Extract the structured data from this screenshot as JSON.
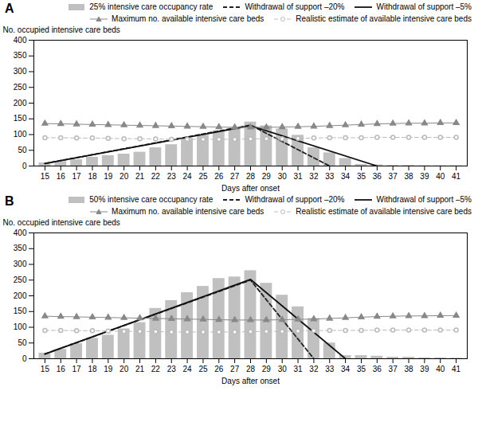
{
  "chart_data": [
    {
      "type": "bar",
      "title": "A",
      "x": [
        15,
        16,
        17,
        18,
        19,
        20,
        21,
        22,
        23,
        24,
        25,
        26,
        27,
        28,
        29,
        30,
        31,
        32,
        33,
        34,
        35,
        36,
        37,
        38,
        39,
        40,
        41
      ],
      "xlim": [
        14.3,
        41.7
      ],
      "xticks": [
        15,
        16,
        17,
        18,
        19,
        20,
        21,
        22,
        23,
        24,
        25,
        26,
        27,
        28,
        29,
        30,
        31,
        32,
        33,
        34,
        35,
        36,
        37,
        38,
        39,
        40,
        41
      ],
      "ylim": [
        0,
        400
      ],
      "yticks": [
        0,
        50,
        100,
        150,
        200,
        250,
        300,
        350,
        400
      ],
      "xlabel": "Days after onset",
      "ylabel": "No. occupied intensive care beds",
      "legend": "upper right",
      "grid": false,
      "series": [
        {
          "name": "25% intensive care occupancy rate",
          "type": "bar",
          "color": "#c0c0c0",
          "values": [
            10,
            14,
            20,
            28,
            33,
            38,
            44,
            58,
            68,
            88,
            98,
            112,
            122,
            140,
            128,
            118,
            98,
            58,
            42,
            24,
            5,
            4,
            2,
            2,
            1,
            1,
            1
          ]
        },
        {
          "name": "Withdrawal of support –20%",
          "type": "line",
          "color": "#222222",
          "line_style": "dashed",
          "x": [
            15,
            28,
            33
          ],
          "values": [
            8,
            130,
            0
          ]
        },
        {
          "name": "Withdrawal of support –5%",
          "type": "line",
          "color": "#111111",
          "line_style": "solid",
          "x": [
            15,
            28,
            36
          ],
          "values": [
            8,
            128,
            0
          ]
        },
        {
          "name": "Maximum no. available intensive care beds",
          "type": "line",
          "color": "#888888",
          "line_style": "solid",
          "marker": "triangle",
          "values": [
            135,
            134,
            133,
            132,
            131,
            130,
            129,
            128,
            127,
            126,
            125,
            124,
            123,
            123,
            123,
            124,
            125,
            126,
            128,
            130,
            132,
            134,
            135,
            136,
            136,
            137,
            137
          ]
        },
        {
          "name": "Realistic estimate of available intensive care beds",
          "type": "line",
          "color": "#bbbbbb",
          "line_style": "dashed",
          "marker": "circle",
          "values": [
            90,
            90,
            89,
            89,
            88,
            87,
            87,
            86,
            85,
            85,
            85,
            85,
            85,
            86,
            87,
            87,
            88,
            89,
            90,
            90,
            90,
            91,
            91,
            91,
            91,
            91,
            91
          ]
        }
      ]
    },
    {
      "type": "bar",
      "title": "B",
      "x": [
        15,
        16,
        17,
        18,
        19,
        20,
        21,
        22,
        23,
        24,
        25,
        26,
        27,
        28,
        29,
        30,
        31,
        32,
        33,
        34,
        35,
        36,
        37,
        38,
        39,
        40,
        41
      ],
      "xlim": [
        14.3,
        41.7
      ],
      "xticks": [
        15,
        16,
        17,
        18,
        19,
        20,
        21,
        22,
        23,
        24,
        25,
        26,
        27,
        28,
        29,
        30,
        31,
        32,
        33,
        34,
        35,
        36,
        37,
        38,
        39,
        40,
        41
      ],
      "ylim": [
        0,
        400
      ],
      "yticks": [
        0,
        50,
        100,
        150,
        200,
        250,
        300,
        350,
        400
      ],
      "xlabel": "Days after onset",
      "ylabel": "No. occupied intensive care beds",
      "legend": "upper right",
      "grid": false,
      "series": [
        {
          "name": "50% intensive care occupancy rate",
          "type": "bar",
          "color": "#c0c0c0",
          "values": [
            18,
            30,
            48,
            65,
            75,
            95,
            115,
            160,
            185,
            210,
            230,
            255,
            260,
            280,
            240,
            202,
            165,
            128,
            50,
            10,
            10,
            8,
            5,
            5,
            3,
            3,
            2
          ]
        },
        {
          "name": "Withdrawal of support –20%",
          "type": "line",
          "color": "#222222",
          "line_style": "dashed",
          "x": [
            15,
            28,
            32
          ],
          "values": [
            15,
            250,
            0
          ]
        },
        {
          "name": "Withdrawal of support –5%",
          "type": "line",
          "color": "#111111",
          "line_style": "solid",
          "x": [
            15,
            28,
            34
          ],
          "values": [
            15,
            252,
            0
          ]
        },
        {
          "name": "Maximum no. available intensive care beds",
          "type": "line",
          "color": "#888888",
          "line_style": "solid",
          "marker": "triangle",
          "values": [
            135,
            134,
            133,
            132,
            131,
            130,
            129,
            128,
            127,
            126,
            125,
            124,
            123,
            123,
            123,
            124,
            125,
            126,
            128,
            130,
            132,
            134,
            135,
            136,
            136,
            137,
            137
          ]
        },
        {
          "name": "Realistic estimate of available intensive care beds",
          "type": "line",
          "color": "#bbbbbb",
          "line_style": "dashed",
          "marker": "circle",
          "values": [
            90,
            90,
            89,
            89,
            88,
            87,
            87,
            86,
            85,
            85,
            85,
            85,
            85,
            86,
            87,
            87,
            88,
            89,
            90,
            90,
            90,
            91,
            91,
            91,
            91,
            91,
            91
          ]
        }
      ]
    }
  ]
}
